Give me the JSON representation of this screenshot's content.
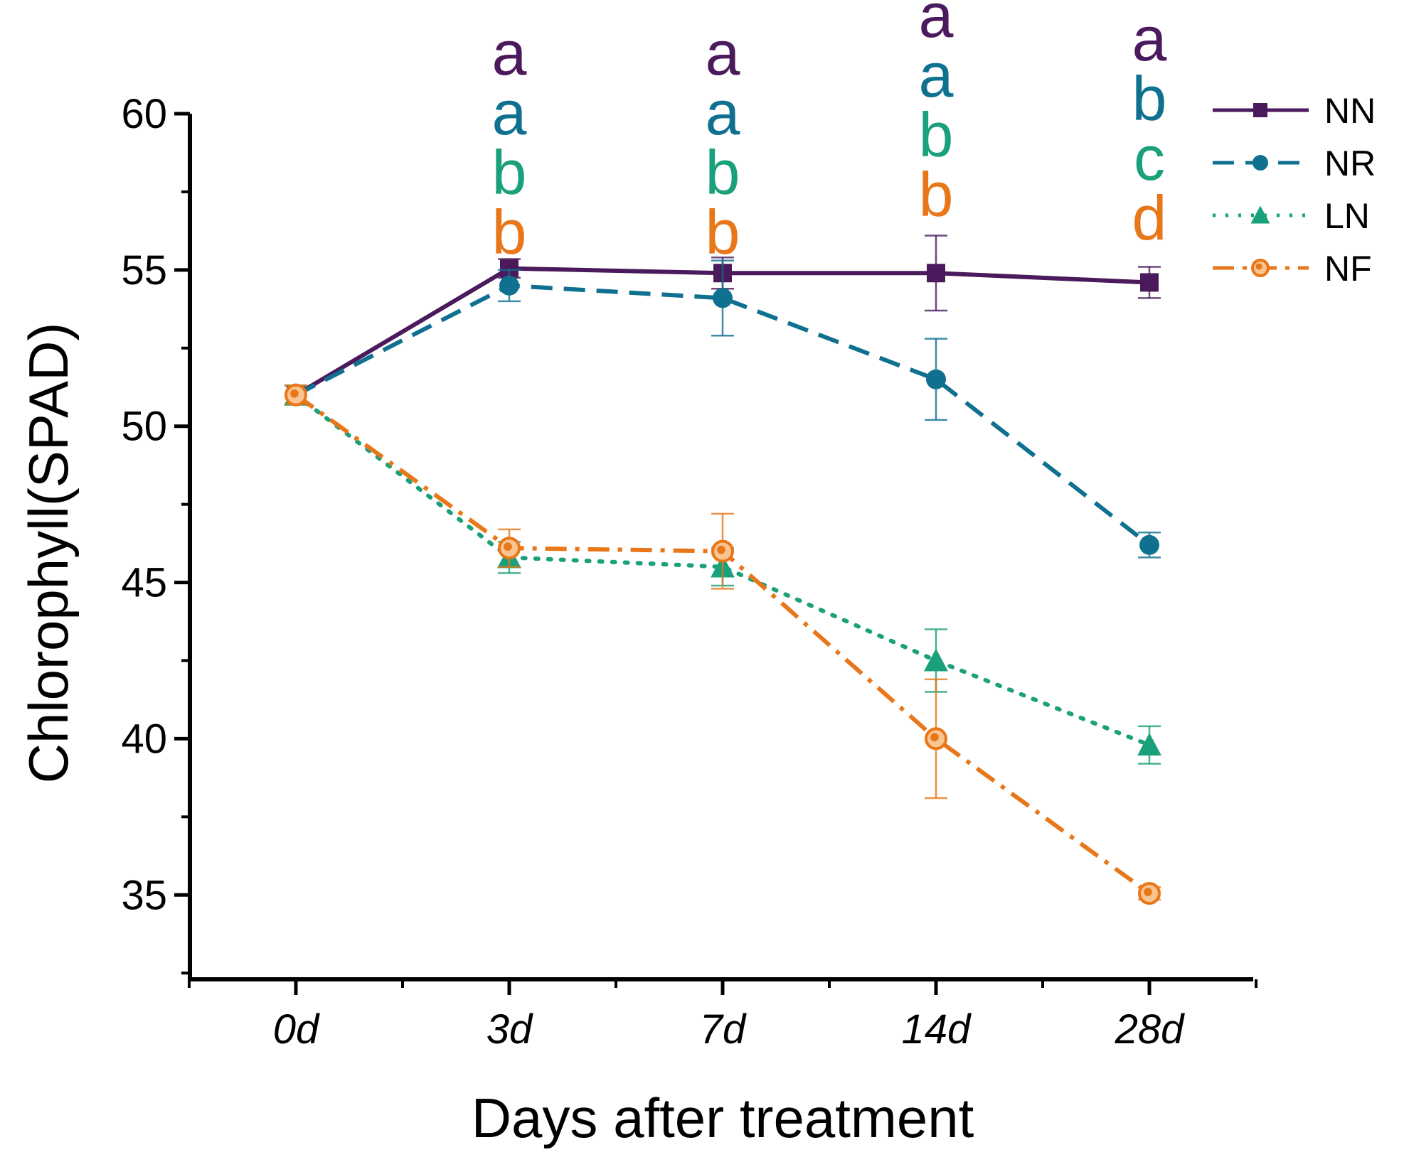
{
  "chart_data": {
    "type": "line",
    "title": "",
    "xlabel": "Days after treatment",
    "ylabel": "Chlorophyll(SPAD)",
    "categories": [
      "0d",
      "3d",
      "7d",
      "14d",
      "28d"
    ],
    "ylim": [
      32.3,
      60
    ],
    "yticks": [
      35,
      40,
      45,
      50,
      55,
      60
    ],
    "ytick_labels": [
      "35",
      "40",
      "45",
      "50",
      "55",
      "60"
    ],
    "legend_position": "top-right",
    "series": [
      {
        "name": "NN",
        "color": "#4a1a5c",
        "marker": "square",
        "dash": "solid",
        "values": [
          51.0,
          55.05,
          54.9,
          54.9,
          54.6
        ],
        "errors": [
          0.3,
          0.3,
          0.5,
          1.2,
          0.5
        ],
        "letters": [
          "",
          "a",
          "a",
          "a",
          "a"
        ]
      },
      {
        "name": "NR",
        "color": "#0f7090",
        "marker": "circle",
        "dash": "dash",
        "values": [
          51.0,
          54.5,
          54.1,
          51.5,
          46.2
        ],
        "errors": [
          0.3,
          0.5,
          1.2,
          1.3,
          0.4
        ],
        "letters": [
          "",
          "a",
          "a",
          "a",
          "b"
        ]
      },
      {
        "name": "LN",
        "color": "#1aa07a",
        "marker": "triangle",
        "dash": "dot",
        "values": [
          51.0,
          45.8,
          45.5,
          42.5,
          39.8
        ],
        "errors": [
          0.3,
          0.5,
          0.6,
          1.0,
          0.6
        ],
        "letters": [
          "",
          "b",
          "b",
          "b",
          "c"
        ]
      },
      {
        "name": "NF",
        "color": "#e8771a",
        "marker": "circle-open",
        "dash": "dashdot",
        "values": [
          51.0,
          46.1,
          46.0,
          40.0,
          35.05
        ],
        "errors": [
          0.3,
          0.6,
          1.2,
          1.9,
          0.2
        ],
        "letters": [
          "",
          "b",
          "b",
          "b",
          "d"
        ]
      }
    ]
  }
}
